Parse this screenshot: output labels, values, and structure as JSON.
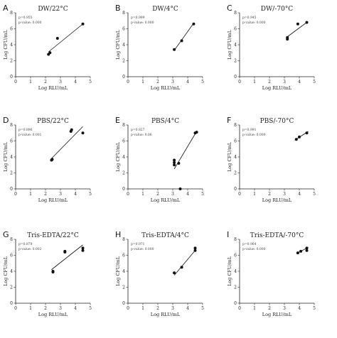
{
  "chart_data": [
    {
      "type": "scatter",
      "letter": "A",
      "title": "DW/22°C",
      "xlabel": "Log RLU/mL",
      "ylabel": "Log CFU/mL",
      "xlim": [
        0,
        5
      ],
      "ylim": [
        0,
        8
      ],
      "x_ticks": [
        0,
        1,
        2,
        3,
        4,
        5
      ],
      "y_ticks": [
        0,
        2,
        4,
        6,
        8
      ],
      "grid": false,
      "annotations": [
        "p=0.955",
        "p-value: 0.000"
      ],
      "points": [
        [
          2.2,
          2.8
        ],
        [
          2.3,
          3.0
        ],
        [
          2.8,
          4.8
        ],
        [
          4.5,
          6.6
        ]
      ],
      "fit": [
        [
          2.2,
          3.1
        ],
        [
          4.5,
          6.6
        ]
      ]
    },
    {
      "type": "scatter",
      "letter": "B",
      "title": "DW/4°C",
      "xlabel": "Log RLU/mL",
      "ylabel": "Log CFU/mL",
      "xlim": [
        0,
        5
      ],
      "ylim": [
        0,
        8
      ],
      "x_ticks": [
        0,
        1,
        2,
        3,
        4,
        5
      ],
      "y_ticks": [
        0,
        2,
        4,
        6,
        8
      ],
      "grid": false,
      "annotations": [
        "p=0.999",
        "p-value: 0.000"
      ],
      "points": [
        [
          3.1,
          3.4
        ],
        [
          3.6,
          4.5
        ],
        [
          4.4,
          6.6
        ]
      ],
      "fit": [
        [
          3.1,
          3.3
        ],
        [
          4.4,
          6.7
        ]
      ]
    },
    {
      "type": "scatter",
      "letter": "C",
      "title": "DW/-70°C",
      "xlabel": "Log RLU/mL",
      "ylabel": "Log CFU/mL",
      "xlim": [
        0,
        5
      ],
      "ylim": [
        0,
        8
      ],
      "x_ticks": [
        0,
        1,
        2,
        3,
        4,
        5
      ],
      "y_ticks": [
        0,
        2,
        4,
        6,
        8
      ],
      "grid": false,
      "annotations": [
        "p=0.945",
        "p-value: 0.000"
      ],
      "points": [
        [
          3.2,
          4.7
        ],
        [
          3.2,
          4.9
        ],
        [
          3.9,
          6.6
        ],
        [
          4.5,
          6.8
        ]
      ],
      "fit": [
        [
          3.2,
          5.0
        ],
        [
          4.5,
          6.8
        ]
      ]
    },
    {
      "type": "scatter",
      "letter": "D",
      "title": "PBS/22°C",
      "xlabel": "Log RLU/mL",
      "ylabel": "Log CFU/mL",
      "xlim": [
        0,
        5
      ],
      "ylim": [
        0,
        8
      ],
      "x_ticks": [
        0,
        1,
        2,
        3,
        4,
        5
      ],
      "y_ticks": [
        0,
        2,
        4,
        6,
        8
      ],
      "grid": false,
      "annotations": [
        "p=0.896",
        "p-value: 0.001"
      ],
      "points": [
        [
          2.4,
          3.6
        ],
        [
          2.45,
          3.7
        ],
        [
          3.7,
          7.2
        ],
        [
          3.75,
          7.4
        ],
        [
          4.5,
          7.0
        ]
      ],
      "fit": [
        [
          2.4,
          3.8
        ],
        [
          4.5,
          7.8
        ]
      ]
    },
    {
      "type": "scatter",
      "letter": "E",
      "title": "PBS/4°C",
      "xlabel": "Log RLU/mL",
      "ylabel": "Log CFU/mL",
      "xlim": [
        0,
        5
      ],
      "ylim": [
        0,
        8
      ],
      "x_ticks": [
        0,
        1,
        2,
        3,
        4,
        5
      ],
      "y_ticks": [
        0,
        2,
        4,
        6,
        8
      ],
      "grid": false,
      "annotations": [
        "p=0.827",
        "p-value: 0.06"
      ],
      "points": [
        [
          3.1,
          3.0
        ],
        [
          3.1,
          3.3
        ],
        [
          3.1,
          3.6
        ],
        [
          3.4,
          3.2
        ],
        [
          3.5,
          0.0
        ],
        [
          4.5,
          7.0
        ],
        [
          4.6,
          7.1
        ]
      ],
      "fit": [
        [
          3.1,
          2.5
        ],
        [
          4.6,
          7.2
        ]
      ]
    },
    {
      "type": "scatter",
      "letter": "F",
      "title": "PBS/-70°C",
      "xlabel": "Log RLU/mL",
      "ylabel": "Log CFU/mL",
      "xlim": [
        0,
        5
      ],
      "ylim": [
        0,
        8
      ],
      "x_ticks": [
        0,
        1,
        2,
        3,
        4,
        5
      ],
      "y_ticks": [
        0,
        2,
        4,
        6,
        8
      ],
      "grid": false,
      "annotations": [
        "p=0.991",
        "p-value: 0.000"
      ],
      "points": [
        [
          3.8,
          6.2
        ],
        [
          4.0,
          6.5
        ],
        [
          4.5,
          7.0
        ]
      ],
      "fit": [
        [
          3.7,
          6.1
        ],
        [
          4.6,
          7.2
        ]
      ]
    },
    {
      "type": "scatter",
      "letter": "G",
      "title": "Tris-EDTA/22°C",
      "xlabel": "Log RLU/mL",
      "ylabel": "Log CFU/mL",
      "xlim": [
        0,
        5
      ],
      "ylim": [
        0,
        8
      ],
      "x_ticks": [
        0,
        1,
        2,
        3,
        4,
        5
      ],
      "y_ticks": [
        0,
        2,
        4,
        6,
        8
      ],
      "grid": false,
      "annotations": [
        "p=0.879",
        "p-value: 0.002"
      ],
      "points": [
        [
          2.5,
          3.9
        ],
        [
          2.5,
          4.0
        ],
        [
          3.3,
          6.4
        ],
        [
          3.3,
          6.5
        ],
        [
          4.5,
          6.6
        ],
        [
          4.5,
          6.9
        ]
      ],
      "fit": [
        [
          2.4,
          4.2
        ],
        [
          4.5,
          7.3
        ]
      ]
    },
    {
      "type": "scatter",
      "letter": "H",
      "title": "Tris-EDTA/4°C",
      "xlabel": "Log RLU/mL",
      "ylabel": "Log CFU/mL",
      "xlim": [
        0,
        5
      ],
      "ylim": [
        0,
        8
      ],
      "x_ticks": [
        0,
        1,
        2,
        3,
        4,
        5
      ],
      "y_ticks": [
        0,
        2,
        4,
        6,
        8
      ],
      "grid": false,
      "annotations": [
        "p=0.971",
        "p-value: 0.000"
      ],
      "points": [
        [
          3.1,
          3.8
        ],
        [
          3.6,
          4.5
        ],
        [
          4.5,
          6.6
        ],
        [
          4.5,
          6.9
        ]
      ],
      "fit": [
        [
          3.1,
          3.5
        ],
        [
          4.5,
          6.6
        ]
      ]
    },
    {
      "type": "scatter",
      "letter": "I",
      "title": "Tris-EDTA/-70°C",
      "xlabel": "Log RLU/mL",
      "ylabel": "Log CFU/mL",
      "xlim": [
        0,
        5
      ],
      "ylim": [
        0,
        8
      ],
      "x_ticks": [
        0,
        1,
        2,
        3,
        4,
        5
      ],
      "y_ticks": [
        0,
        2,
        4,
        6,
        8
      ],
      "grid": false,
      "annotations": [
        "p=0.964",
        "p-value: 0.000"
      ],
      "points": [
        [
          3.9,
          6.3
        ],
        [
          4.1,
          6.5
        ],
        [
          4.5,
          6.6
        ],
        [
          4.5,
          6.9
        ]
      ],
      "fit": [
        [
          3.8,
          6.2
        ],
        [
          4.6,
          7.0
        ]
      ]
    }
  ]
}
